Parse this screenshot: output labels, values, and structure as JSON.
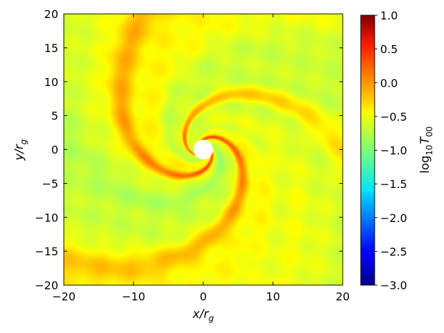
{
  "chart_data": {
    "type": "heatmap",
    "xlabel": "x/r",
    "xlabel_sub": "g",
    "ylabel": "y/r",
    "ylabel_sub": "g",
    "xlim": [
      -20,
      20
    ],
    "ylim": [
      -20,
      20
    ],
    "xticks": [
      -20,
      -10,
      0,
      10,
      20
    ],
    "yticks": [
      -20,
      -15,
      -10,
      -5,
      0,
      5,
      10,
      15,
      20
    ],
    "xtick_labels": [
      "−20",
      "−10",
      "0",
      "10",
      "20"
    ],
    "ytick_labels": [
      "−20",
      "−15",
      "−10",
      "−5",
      "0",
      "5",
      "10",
      "15",
      "20"
    ],
    "grid": false,
    "colormap": "jet",
    "colorbar": {
      "label_prefix": "log",
      "label_base": "10",
      "label_var": "T",
      "label_sub": "00",
      "range": [
        -3.0,
        1.0
      ],
      "ticks": [
        1.0,
        0.5,
        0.0,
        -0.5,
        -1.0,
        -1.5,
        -2.0,
        -2.5,
        -3.0
      ],
      "tick_labels": [
        "1.0",
        "0.5",
        "0.0",
        "−0.5",
        "−1.0",
        "−1.5",
        "−2.0",
        "−2.5",
        "−3.0"
      ]
    },
    "field": {
      "background": -0.6,
      "spiral_arms": 3,
      "arm_peak": 0.2,
      "trough": -1.1,
      "central_excised_radius": 1.4
    }
  }
}
